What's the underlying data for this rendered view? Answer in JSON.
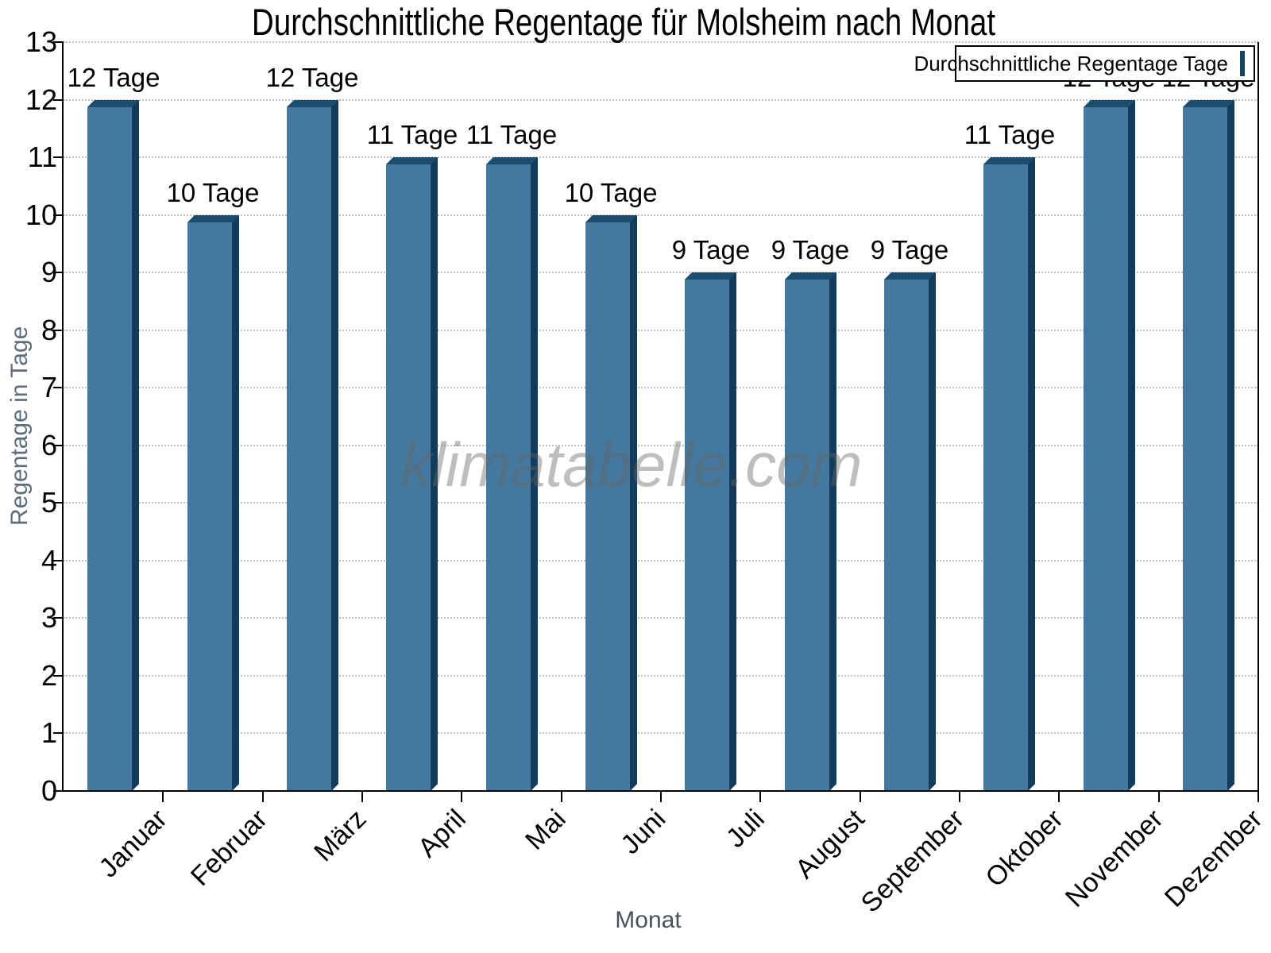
{
  "title": "Durchschnittliche Regentage für Molsheim nach Monat",
  "watermark": {
    "text": "klimatabelle.com"
  },
  "legend": {
    "label": "Durchschnittliche Regentage Tage"
  },
  "axes": {
    "y_label": "Regentage in Tage",
    "x_label": "Monat"
  },
  "chart_data": {
    "type": "bar",
    "title": "Durchschnittliche Regentage für Molsheim nach Monat",
    "categories": [
      "Januar",
      "Februar",
      "März",
      "April",
      "Mai",
      "Juni",
      "Juli",
      "August",
      "September",
      "Oktober",
      "November",
      "Dezember"
    ],
    "values": [
      12,
      10,
      12,
      11,
      11,
      10,
      9,
      9,
      9,
      11,
      12,
      12
    ],
    "bar_labels": [
      "12 Tage",
      "10 Tage",
      "12 Tage",
      "11 Tage",
      "11 Tage",
      "10 Tage",
      "9 Tage",
      "9 Tage",
      "9 Tage",
      "11 Tage",
      "12 Tage",
      "12 Tage"
    ],
    "xlabel": "Monat",
    "ylabel": "Regentage in Tage",
    "ylim": [
      0,
      13
    ],
    "yticks": [
      0,
      1,
      2,
      3,
      4,
      5,
      6,
      7,
      8,
      9,
      10,
      11,
      12,
      13
    ],
    "grid": "horizontal-dotted",
    "legend": [
      "Durchschnittliche Regentage Tage"
    ],
    "legend_position": "top-right",
    "watermark": "klimatabelle.com",
    "colors": {
      "bar_fill": "#44789e",
      "bar_top_edge": "#1b4e6e",
      "bar_right_edge": "#123c5a",
      "grid": "#bfbfbf",
      "axis": "#000000",
      "y_title": "#5c6c7b",
      "x_title": "#49525c",
      "watermark": "#c4c4c4"
    }
  }
}
